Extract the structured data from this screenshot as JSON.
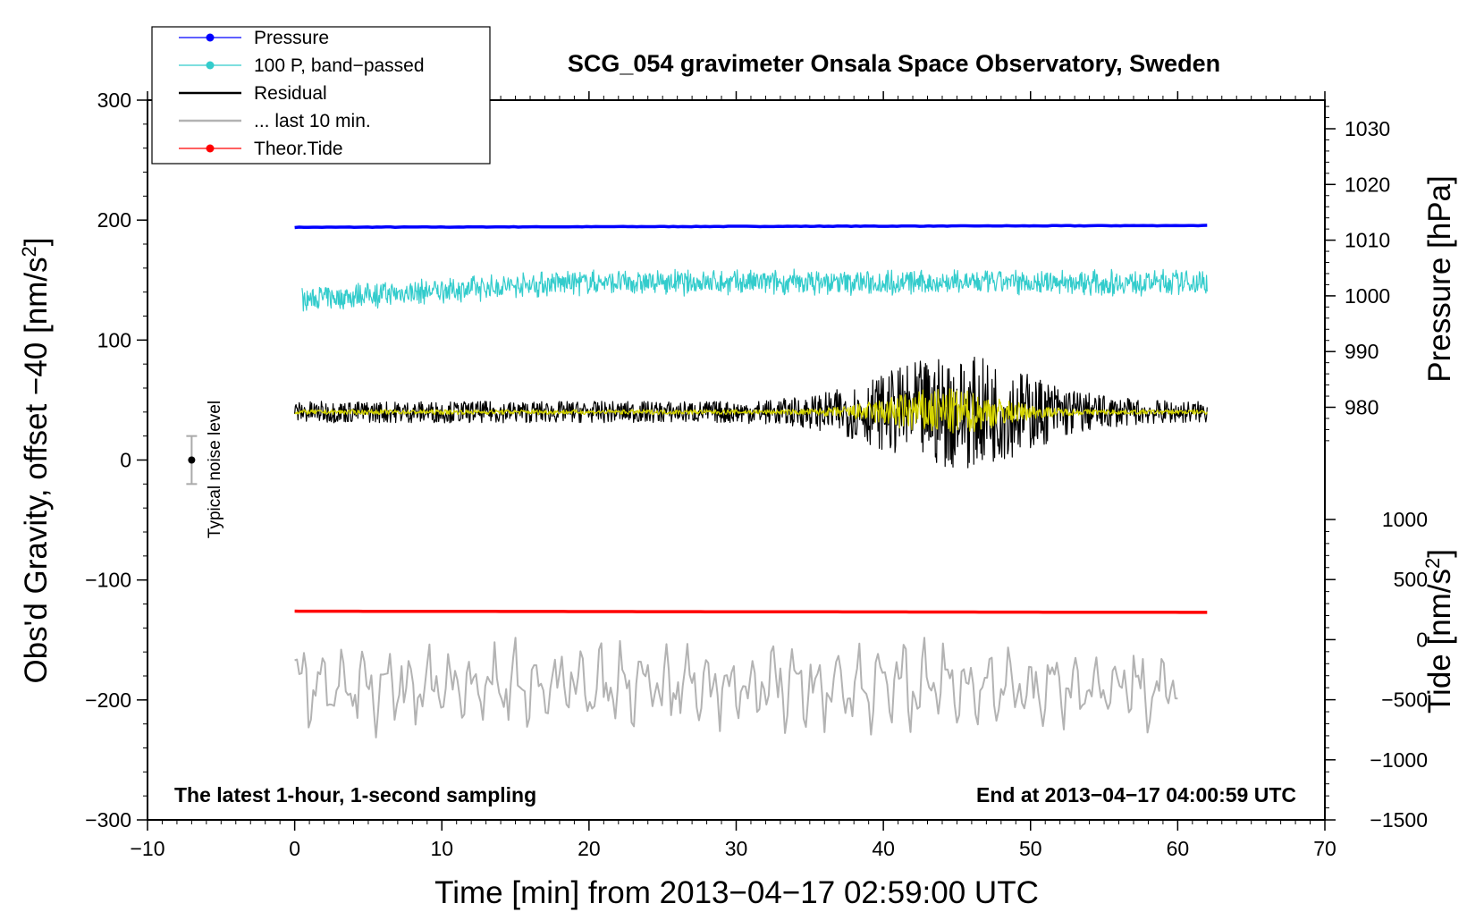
{
  "chart_data": {
    "type": "line",
    "title": "SCG_054 gravimeter Onsala Space Observatory, Sweden",
    "xlabel": "Time [min] from 2013−04−17 02:59:00 UTC",
    "ylabel_left": "Obs'd Gravity, offset −40 [nm/s",
    "ylabel_left_sup": "2",
    "ylabel_left_tail": "]",
    "ylabel_pressure": "Pressure [hPa]",
    "ylabel_tide": "Tide [nm/s",
    "ylabel_tide_sup": "2",
    "ylabel_tide_tail": "]",
    "xlim": [
      -10,
      70
    ],
    "ylim": [
      -300,
      300
    ],
    "x_ticks": [
      "−10",
      "0",
      "10",
      "20",
      "30",
      "40",
      "50",
      "60",
      "70"
    ],
    "y_ticks_left": [
      "300",
      "200",
      "100",
      "0",
      "−100",
      "−200",
      "−300"
    ],
    "pressure_ticks": [
      "1030",
      "1020",
      "1010",
      "1000",
      "990",
      "980"
    ],
    "tide_ticks": [
      "1000",
      "500",
      "0",
      "−500",
      "−1000",
      "−1500"
    ],
    "bottom_left_note": "The latest 1-hour, 1-second sampling",
    "bottom_right_note": "End at 2013−04−17 04:00:59 UTC",
    "noise_label": "Typical noise level",
    "noise_bar": {
      "x": -7,
      "center": 0,
      "low": -20,
      "high": 20
    },
    "legend": [
      {
        "label": "Pressure",
        "color": "#0000ff",
        "marker": true
      },
      {
        "label": "100 P, band−passed",
        "color": "#33cccc",
        "marker": true
      },
      {
        "label": "Residual",
        "color": "#000000",
        "marker": false
      },
      {
        "label": "... last 10 min.",
        "color": "#b3b3b3",
        "marker": false
      },
      {
        "label": "Theor.Tide",
        "color": "#ff0000",
        "marker": true
      }
    ],
    "series": [
      {
        "name": "Pressure",
        "color": "#0000ff",
        "x_range": [
          0,
          62
        ],
        "level": 194,
        "drift": 1.5,
        "noise": 0.4,
        "shape": "flat"
      },
      {
        "name": "100 P, band-passed",
        "color": "#33cccc",
        "x_range": [
          0.5,
          62
        ],
        "level": 148,
        "noise": 9,
        "shape": "ramp"
      },
      {
        "name": "Residual",
        "color": "#000000",
        "x_range": [
          0,
          62
        ],
        "level": 40,
        "noise": 9,
        "burst_center": 45,
        "burst_width": 7,
        "burst_amp": 38,
        "shape": "burst"
      },
      {
        "name": "Residual smoothed",
        "color": "#d4d400",
        "x_range": [
          0,
          62
        ],
        "level": 40,
        "noise": 2,
        "burst_center": 44,
        "burst_width": 5,
        "burst_amp": 18,
        "shape": "burst"
      },
      {
        "name": "Theor.Tide",
        "color": "#ff0000",
        "x_range": [
          0,
          62
        ],
        "level": -126,
        "drift": -1,
        "noise": 0,
        "shape": "flat"
      },
      {
        "name": "... last 10 min.",
        "color": "#b3b3b3",
        "x_range": [
          0,
          60
        ],
        "level": -188,
        "noise": 22,
        "shape": "wave"
      }
    ]
  }
}
